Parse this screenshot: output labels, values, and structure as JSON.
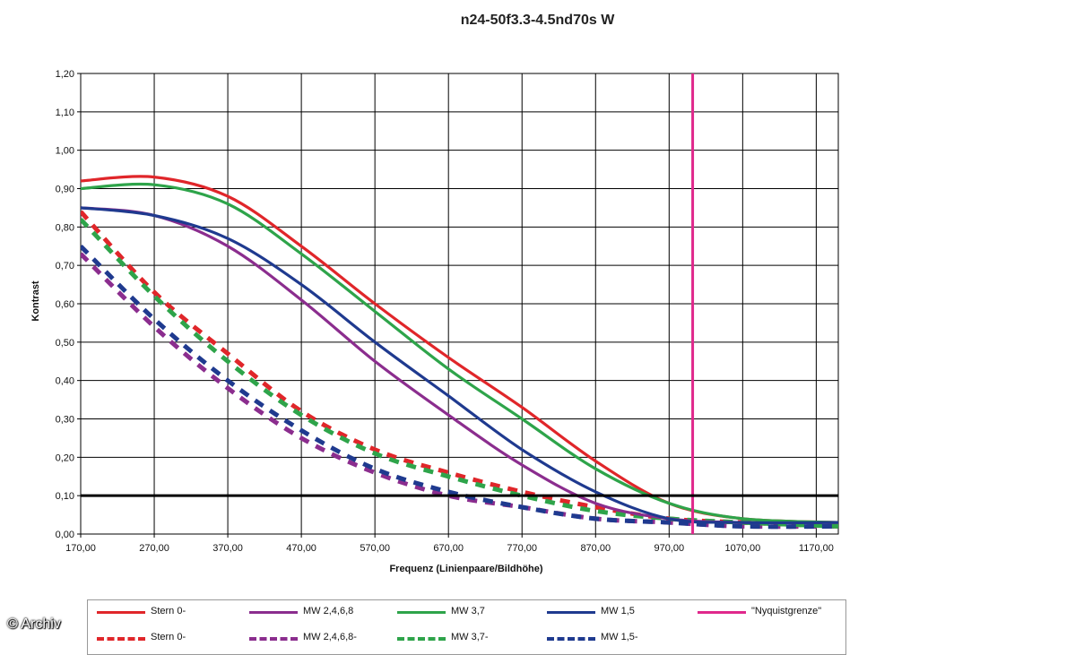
{
  "watermark": "© Archiv",
  "chart_data": {
    "type": "line",
    "title": "n24-50f3.3-4.5nd70s W",
    "xlabel": "Frequenz (Linienpaare/Bildhöhe)",
    "ylabel": "Kontrast",
    "xlim": [
      170,
      1200
    ],
    "ylim": [
      0,
      1.2
    ],
    "x_ticks": [
      "170,00",
      "270,00",
      "370,00",
      "470,00",
      "570,00",
      "670,00",
      "770,00",
      "870,00",
      "970,00",
      "1070,00",
      "1170,00"
    ],
    "y_ticks": [
      "0,00",
      "0,10",
      "0,20",
      "0,30",
      "0,40",
      "0,50",
      "0,60",
      "0,70",
      "0,80",
      "0,90",
      "1,00",
      "1,10",
      "1,20"
    ],
    "grid": true,
    "legend_position": "bottom",
    "reference_line": {
      "y": 0.1,
      "color": "#000000"
    },
    "series": [
      {
        "name": "Stern 0-",
        "color": "#e0262a",
        "dashed": false,
        "x": [
          170,
          270,
          370,
          470,
          570,
          670,
          770,
          870,
          970,
          1070,
          1200
        ],
        "y": [
          0.92,
          0.93,
          0.88,
          0.75,
          0.6,
          0.46,
          0.33,
          0.19,
          0.08,
          0.04,
          0.03
        ]
      },
      {
        "name": "MW 2,4,6,8",
        "color": "#8b2d8e",
        "dashed": false,
        "x": [
          170,
          270,
          370,
          470,
          570,
          670,
          770,
          870,
          970,
          1070,
          1200
        ],
        "y": [
          0.85,
          0.83,
          0.75,
          0.61,
          0.45,
          0.31,
          0.18,
          0.08,
          0.04,
          0.03,
          0.03
        ]
      },
      {
        "name": "MW 3,7",
        "color": "#2ea44a",
        "dashed": false,
        "x": [
          170,
          270,
          370,
          470,
          570,
          670,
          770,
          870,
          970,
          1070,
          1200
        ],
        "y": [
          0.9,
          0.91,
          0.86,
          0.73,
          0.58,
          0.43,
          0.3,
          0.17,
          0.08,
          0.04,
          0.03
        ]
      },
      {
        "name": "MW 1,5",
        "color": "#1f3a8f",
        "dashed": false,
        "x": [
          170,
          270,
          370,
          470,
          570,
          670,
          770,
          870,
          970,
          1070,
          1200
        ],
        "y": [
          0.85,
          0.83,
          0.77,
          0.65,
          0.5,
          0.36,
          0.22,
          0.11,
          0.04,
          0.03,
          0.03
        ]
      },
      {
        "name": "\"Nyquistgrenze\"",
        "color": "#e0288c",
        "dashed": false,
        "vertical": true,
        "x": [
          1002,
          1002
        ],
        "y": [
          0,
          1.2
        ]
      },
      {
        "name": "Stern 0-",
        "color": "#e0262a",
        "dashed": true,
        "x": [
          170,
          270,
          370,
          470,
          570,
          670,
          770,
          870,
          970,
          1070,
          1200
        ],
        "y": [
          0.84,
          0.63,
          0.47,
          0.32,
          0.22,
          0.16,
          0.11,
          0.07,
          0.04,
          0.03,
          0.02
        ]
      },
      {
        "name": "MW 2,4,6,8-",
        "color": "#8b2d8e",
        "dashed": true,
        "x": [
          170,
          270,
          370,
          470,
          570,
          670,
          770,
          870,
          970,
          1070,
          1200
        ],
        "y": [
          0.73,
          0.54,
          0.38,
          0.25,
          0.16,
          0.1,
          0.07,
          0.04,
          0.03,
          0.02,
          0.02
        ]
      },
      {
        "name": "MW 3,7-",
        "color": "#2ea44a",
        "dashed": true,
        "x": [
          170,
          270,
          370,
          470,
          570,
          670,
          770,
          870,
          970,
          1070,
          1200
        ],
        "y": [
          0.82,
          0.62,
          0.45,
          0.31,
          0.21,
          0.15,
          0.1,
          0.06,
          0.04,
          0.03,
          0.02
        ]
      },
      {
        "name": "MW 1,5-",
        "color": "#1f3a8f",
        "dashed": true,
        "x": [
          170,
          270,
          370,
          470,
          570,
          670,
          770,
          870,
          970,
          1070,
          1200
        ],
        "y": [
          0.75,
          0.56,
          0.4,
          0.27,
          0.17,
          0.11,
          0.07,
          0.04,
          0.03,
          0.02,
          0.02
        ]
      }
    ]
  }
}
